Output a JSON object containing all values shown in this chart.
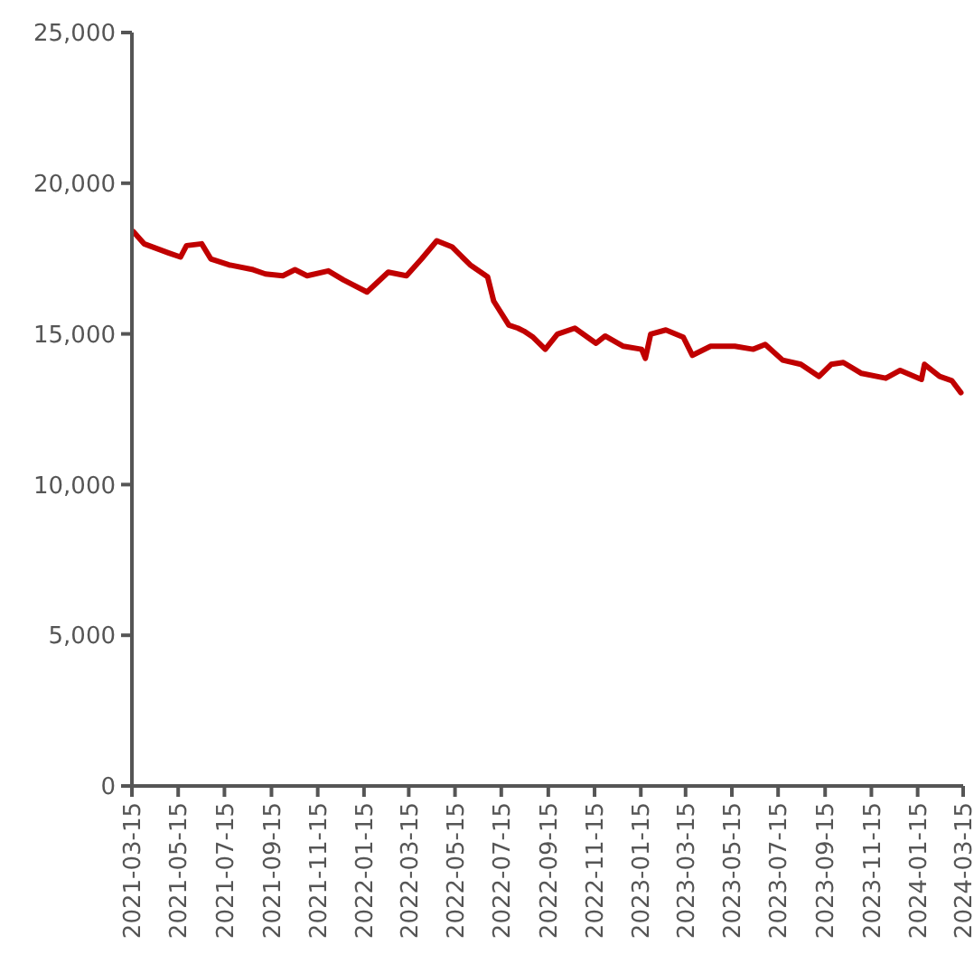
{
  "chart_data": {
    "type": "line",
    "x": [
      "2021-03-17",
      "2021-03-31",
      "2021-05-02",
      "2021-05-18",
      "2021-05-26",
      "2021-06-15",
      "2021-06-27",
      "2021-07-21",
      "2021-08-22",
      "2021-09-07",
      "2021-09-30",
      "2021-10-16",
      "2021-11-01",
      "2021-11-29",
      "2021-12-19",
      "2022-01-19",
      "2022-02-16",
      "2022-03-12",
      "2022-04-01",
      "2022-04-21",
      "2022-05-11",
      "2022-06-04",
      "2022-06-27",
      "2022-07-05",
      "2022-07-25",
      "2022-08-06",
      "2022-08-14",
      "2022-08-26",
      "2022-09-11",
      "2022-09-27",
      "2022-10-20",
      "2022-11-17",
      "2022-11-29",
      "2022-12-23",
      "2023-01-16",
      "2023-01-21",
      "2023-01-28",
      "2023-02-17",
      "2023-03-12",
      "2023-03-24",
      "2023-04-17",
      "2023-05-19",
      "2023-06-12",
      "2023-06-28",
      "2023-07-21",
      "2023-08-14",
      "2023-09-07",
      "2023-09-23",
      "2023-10-09",
      "2023-11-02",
      "2023-12-04",
      "2023-12-23",
      "2024-01-20",
      "2024-01-24",
      "2024-02-13",
      "2024-02-29",
      "2024-03-12"
    ],
    "series": [
      {
        "color": "#c00000",
        "values": [
          18390,
          17990,
          17690,
          17550,
          17930,
          17990,
          17490,
          17290,
          17130,
          16990,
          16930,
          17130,
          16930,
          17090,
          16790,
          16390,
          17050,
          16930,
          17490,
          18090,
          17890,
          17290,
          16890,
          16090,
          15290,
          15190,
          15090,
          14890,
          14490,
          14990,
          15190,
          14690,
          14930,
          14590,
          14490,
          14190,
          14990,
          15130,
          14890,
          14290,
          14590,
          14590,
          14490,
          14650,
          14130,
          13990,
          13590,
          13990,
          14050,
          13690,
          13530,
          13790,
          13490,
          13990,
          13590,
          13450,
          13050
        ]
      }
    ],
    "xlim": [
      "2021-03-15",
      "2024-03-15"
    ],
    "xticks": [
      "2021-03-15",
      "2021-05-15",
      "2021-07-15",
      "2021-09-15",
      "2021-11-15",
      "2022-01-15",
      "2022-03-15",
      "2022-05-15",
      "2022-07-15",
      "2022-09-15",
      "2022-11-15",
      "2023-01-15",
      "2023-03-15",
      "2023-05-15",
      "2023-07-15",
      "2023-09-15",
      "2023-11-15",
      "2024-01-15",
      "2024-03-15"
    ],
    "ylim": [
      0,
      25000
    ],
    "yticks": [
      {
        "value": 0,
        "label": "0"
      },
      {
        "value": 5000,
        "label": "5,000"
      },
      {
        "value": 10000,
        "label": "10,000"
      },
      {
        "value": 15000,
        "label": "15,000"
      },
      {
        "value": 20000,
        "label": "20,000"
      },
      {
        "value": 25000,
        "label": "25,000"
      }
    ],
    "marker": "none",
    "line_style": "solid"
  }
}
